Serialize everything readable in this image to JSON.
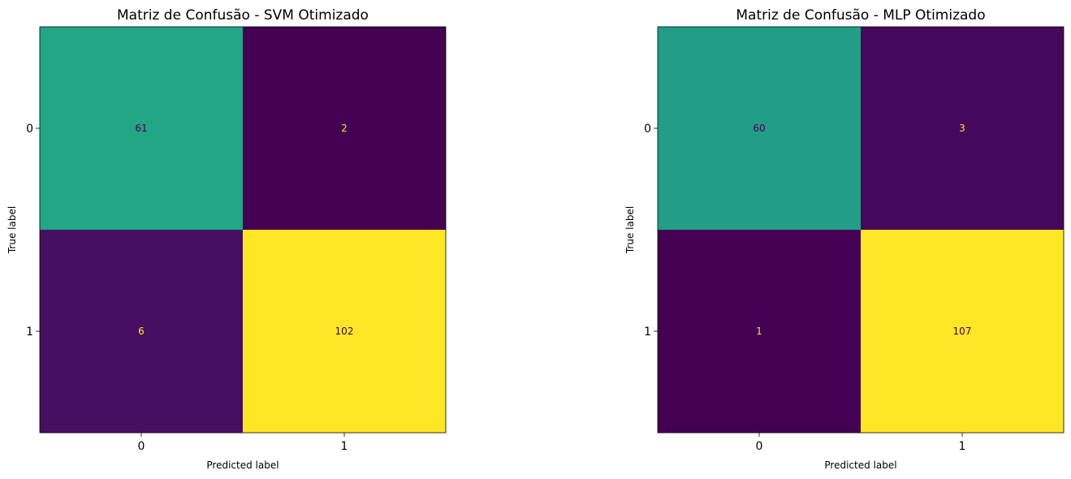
{
  "chart_data": [
    {
      "type": "heatmap",
      "title": "Matriz de Confusão - SVM Otimizado",
      "xlabel": "Predicted label",
      "ylabel": "True label",
      "x_tick_labels": [
        "0",
        "1"
      ],
      "y_tick_labels": [
        "0",
        "1"
      ],
      "values": [
        [
          61,
          2
        ],
        [
          6,
          102
        ]
      ],
      "colormap": "viridis",
      "colorbar": false,
      "grid": false
    },
    {
      "type": "heatmap",
      "title": "Matriz de Confusão - MLP Otimizado",
      "xlabel": "Predicted label",
      "ylabel": "True label",
      "x_tick_labels": [
        "0",
        "1"
      ],
      "y_tick_labels": [
        "0",
        "1"
      ],
      "values": [
        [
          60,
          3
        ],
        [
          1,
          107
        ]
      ],
      "colormap": "viridis",
      "colorbar": false,
      "grid": false
    }
  ]
}
